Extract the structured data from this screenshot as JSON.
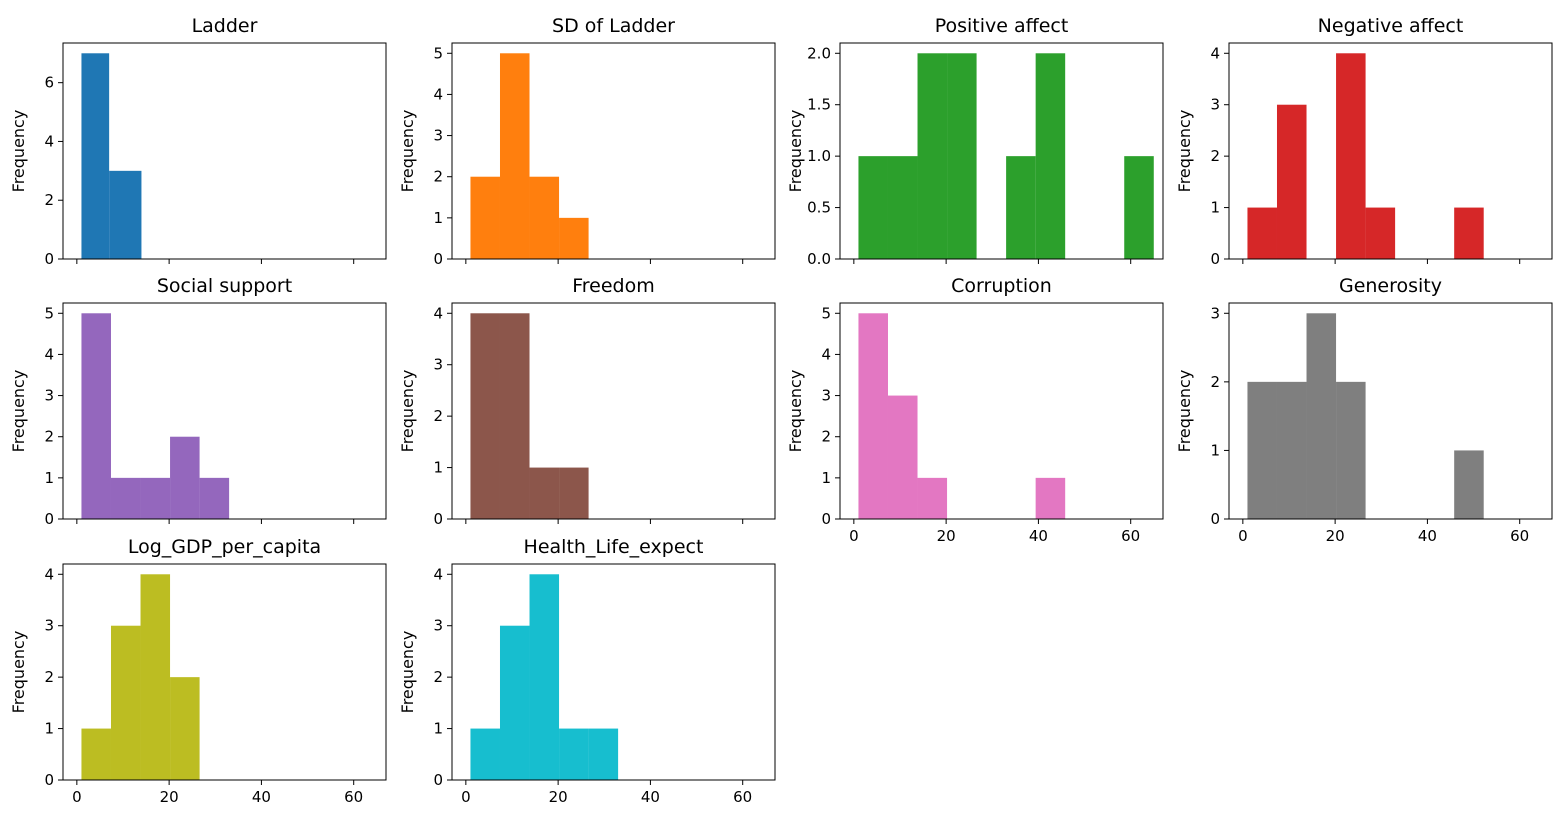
{
  "chart_data": [
    {
      "type": "bar",
      "histogram": true,
      "title": "Ladder",
      "ylabel": "Frequency",
      "color": "#1f77b4",
      "bins": [
        [
          1,
          7,
          7
        ],
        [
          7,
          14,
          3
        ]
      ],
      "xlim": [
        -3,
        67
      ],
      "xticks": [
        0,
        20,
        40,
        60
      ],
      "show_xtick_labels": false,
      "yticks": [
        0,
        2,
        4,
        6
      ],
      "ylim": [
        0,
        7.35
      ]
    },
    {
      "type": "bar",
      "histogram": true,
      "title": "SD of Ladder",
      "ylabel": "Frequency",
      "color": "#ff7f0e",
      "bins": [
        [
          1,
          7.4,
          2
        ],
        [
          7.4,
          13.8,
          5
        ],
        [
          13.8,
          20.2,
          2
        ],
        [
          20.2,
          26.6,
          1
        ]
      ],
      "xlim": [
        -3,
        67
      ],
      "xticks": [
        0,
        20,
        40,
        60
      ],
      "show_xtick_labels": false,
      "yticks": [
        0,
        1,
        2,
        3,
        4,
        5
      ],
      "ylim": [
        0,
        5.25
      ]
    },
    {
      "type": "bar",
      "histogram": true,
      "title": "Positive affect",
      "ylabel": "Frequency",
      "color": "#2ca02c",
      "bins": [
        [
          1,
          7.4,
          1
        ],
        [
          7.4,
          13.8,
          1
        ],
        [
          13.8,
          20.2,
          2
        ],
        [
          20.2,
          26.6,
          2
        ],
        [
          33,
          39.4,
          1
        ],
        [
          39.4,
          45.8,
          2
        ],
        [
          58.6,
          65,
          1
        ]
      ],
      "xlim": [
        -3,
        67
      ],
      "xticks": [
        0,
        20,
        40,
        60
      ],
      "show_xtick_labels": false,
      "yticks": [
        0.0,
        0.5,
        1.0,
        1.5,
        2.0
      ],
      "ytick_labels": [
        "0.0",
        "0.5",
        "1.0",
        "1.5",
        "2.0"
      ],
      "ylim": [
        0,
        2.1
      ]
    },
    {
      "type": "bar",
      "histogram": true,
      "title": "Negative affect",
      "ylabel": "Frequency",
      "color": "#d62728",
      "bins": [
        [
          1,
          7.4,
          1
        ],
        [
          7.4,
          13.8,
          3
        ],
        [
          20.2,
          26.6,
          4
        ],
        [
          26.6,
          33,
          1
        ],
        [
          45.8,
          52.2,
          1
        ]
      ],
      "xlim": [
        -3,
        67
      ],
      "xticks": [
        0,
        20,
        40,
        60
      ],
      "show_xtick_labels": false,
      "yticks": [
        0,
        1,
        2,
        3,
        4
      ],
      "ylim": [
        0,
        4.2
      ]
    },
    {
      "type": "bar",
      "histogram": true,
      "title": "Social support",
      "ylabel": "Frequency",
      "color": "#9467bd",
      "bins": [
        [
          1,
          7.4,
          5
        ],
        [
          7.4,
          13.8,
          1
        ],
        [
          13.8,
          20.2,
          1
        ],
        [
          20.2,
          26.6,
          2
        ],
        [
          26.6,
          33,
          1
        ]
      ],
      "xlim": [
        -3,
        67
      ],
      "xticks": [
        0,
        20,
        40,
        60
      ],
      "show_xtick_labels": false,
      "yticks": [
        0,
        1,
        2,
        3,
        4,
        5
      ],
      "ylim": [
        0,
        5.25
      ]
    },
    {
      "type": "bar",
      "histogram": true,
      "title": "Freedom",
      "ylabel": "Frequency",
      "color": "#8c564b",
      "bins": [
        [
          1,
          7.4,
          4
        ],
        [
          7.4,
          13.8,
          4
        ],
        [
          13.8,
          20.2,
          1
        ],
        [
          20.2,
          26.6,
          1
        ]
      ],
      "xlim": [
        -3,
        67
      ],
      "xticks": [
        0,
        20,
        40,
        60
      ],
      "show_xtick_labels": false,
      "yticks": [
        0,
        1,
        2,
        3,
        4
      ],
      "ylim": [
        0,
        4.2
      ]
    },
    {
      "type": "bar",
      "histogram": true,
      "title": "Corruption",
      "ylabel": "Frequency",
      "color": "#e377c2",
      "bins": [
        [
          1,
          7.4,
          5
        ],
        [
          7.4,
          13.8,
          3
        ],
        [
          13.8,
          20.2,
          1
        ],
        [
          39.4,
          45.8,
          1
        ]
      ],
      "xlim": [
        -3,
        67
      ],
      "xticks": [
        0,
        20,
        40,
        60
      ],
      "show_xtick_labels": true,
      "yticks": [
        0,
        1,
        2,
        3,
        4,
        5
      ],
      "ylim": [
        0,
        5.25
      ]
    },
    {
      "type": "bar",
      "histogram": true,
      "title": "Generosity",
      "ylabel": "Frequency",
      "color": "#7f7f7f",
      "bins": [
        [
          1,
          7.4,
          2
        ],
        [
          7.4,
          13.8,
          2
        ],
        [
          13.8,
          20.2,
          3
        ],
        [
          20.2,
          26.6,
          2
        ],
        [
          45.8,
          52.2,
          1
        ]
      ],
      "xlim": [
        -3,
        67
      ],
      "xticks": [
        0,
        20,
        40,
        60
      ],
      "show_xtick_labels": true,
      "yticks": [
        0,
        1,
        2,
        3
      ],
      "ylim": [
        0,
        3.15
      ]
    },
    {
      "type": "bar",
      "histogram": true,
      "title": "Log_GDP_per_capita",
      "ylabel": "Frequency",
      "color": "#bcbd22",
      "bins": [
        [
          1,
          7.4,
          1
        ],
        [
          7.4,
          13.8,
          3
        ],
        [
          13.8,
          20.2,
          4
        ],
        [
          20.2,
          26.6,
          2
        ]
      ],
      "xlim": [
        -3,
        67
      ],
      "xticks": [
        0,
        20,
        40,
        60
      ],
      "show_xtick_labels": true,
      "yticks": [
        0,
        1,
        2,
        3,
        4
      ],
      "ylim": [
        0,
        4.2
      ]
    },
    {
      "type": "bar",
      "histogram": true,
      "title": "Health_Life_expect",
      "ylabel": "Frequency",
      "color": "#17becf",
      "bins": [
        [
          1,
          7.4,
          1
        ],
        [
          7.4,
          13.8,
          3
        ],
        [
          13.8,
          20.2,
          4
        ],
        [
          20.2,
          26.6,
          1
        ],
        [
          26.6,
          33,
          1
        ]
      ],
      "xlim": [
        -3,
        67
      ],
      "xticks": [
        0,
        20,
        40,
        60
      ],
      "show_xtick_labels": true,
      "yticks": [
        0,
        1,
        2,
        3,
        4
      ],
      "ylim": [
        0,
        4.2
      ]
    }
  ]
}
